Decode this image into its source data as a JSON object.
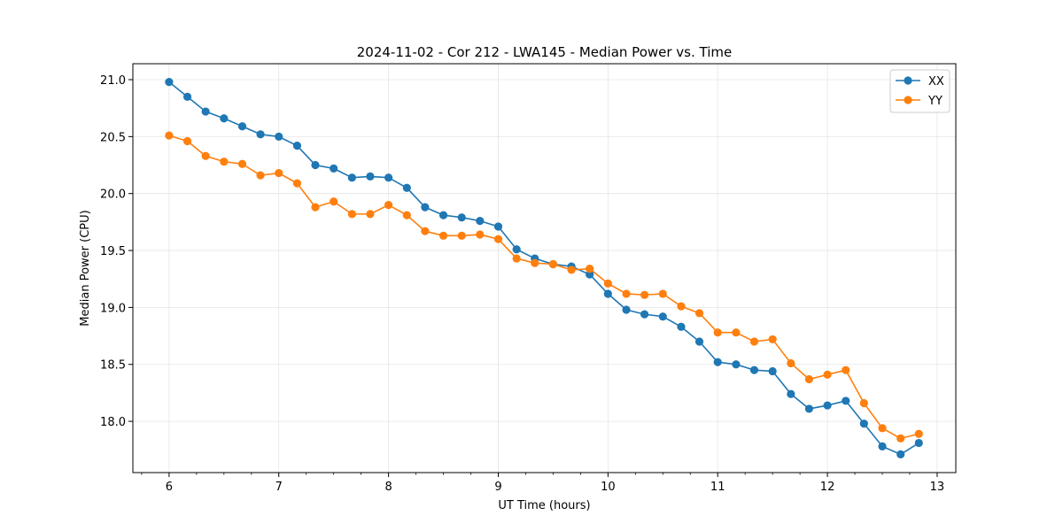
{
  "chart_data": {
    "type": "line",
    "title": "2024-11-02 - Cor 212 - LWA145 - Median Power vs. Time",
    "xlabel": "UT Time (hours)",
    "ylabel": "Median Power (CPU)",
    "xlim": [
      5.67,
      13.17
    ],
    "ylim": [
      17.55,
      21.14
    ],
    "xticks": [
      "6",
      "7",
      "8",
      "9",
      "10",
      "11",
      "12",
      "13"
    ],
    "yticks": [
      "18.0",
      "18.5",
      "19.0",
      "19.5",
      "20.0",
      "20.5",
      "21.0"
    ],
    "grid": true,
    "legend_position": "top-right",
    "x": [
      6.0,
      6.167,
      6.333,
      6.5,
      6.667,
      6.833,
      7.0,
      7.167,
      7.333,
      7.5,
      7.667,
      7.833,
      8.0,
      8.167,
      8.333,
      8.5,
      8.667,
      8.833,
      9.0,
      9.167,
      9.333,
      9.5,
      9.667,
      9.833,
      10.0,
      10.167,
      10.333,
      10.5,
      10.667,
      10.833,
      11.0,
      11.167,
      11.333,
      11.5,
      11.667,
      11.833,
      12.0,
      12.167,
      12.333,
      12.5,
      12.667,
      12.833
    ],
    "series": [
      {
        "name": "XX",
        "color": "#1f77b4",
        "values": [
          20.98,
          20.85,
          20.72,
          20.66,
          20.59,
          20.52,
          20.5,
          20.42,
          20.25,
          20.22,
          20.14,
          20.15,
          20.14,
          20.05,
          19.88,
          19.81,
          19.79,
          19.76,
          19.71,
          19.51,
          19.43,
          19.38,
          19.36,
          19.29,
          19.12,
          18.98,
          18.94,
          18.92,
          18.83,
          18.7,
          18.52,
          18.5,
          18.45,
          18.44,
          18.24,
          18.11,
          18.14,
          18.18,
          17.98,
          17.78,
          17.71,
          17.81
        ]
      },
      {
        "name": "YY",
        "color": "#ff7f0e",
        "values": [
          20.51,
          20.46,
          20.33,
          20.28,
          20.26,
          20.16,
          20.18,
          20.09,
          19.88,
          19.93,
          19.82,
          19.82,
          19.9,
          19.81,
          19.67,
          19.63,
          19.63,
          19.64,
          19.6,
          19.43,
          19.39,
          19.38,
          19.33,
          19.34,
          19.21,
          19.12,
          19.11,
          19.12,
          19.01,
          18.95,
          18.78,
          18.78,
          18.7,
          18.72,
          18.51,
          18.37,
          18.41,
          18.45,
          18.16,
          17.94,
          17.85,
          17.89
        ]
      }
    ]
  }
}
